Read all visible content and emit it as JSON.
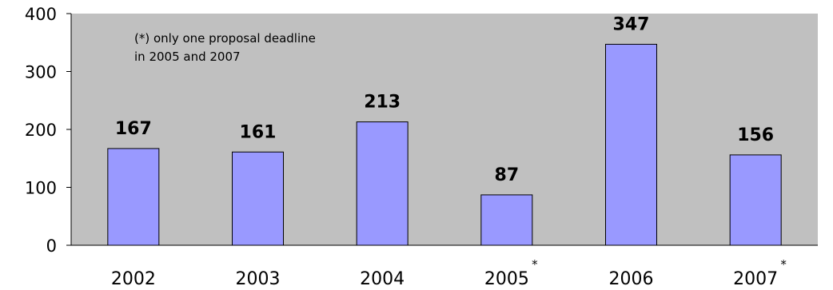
{
  "chart_data": {
    "type": "bar",
    "categories": [
      "2002",
      "2003",
      "2004",
      "2005",
      "2006",
      "2007"
    ],
    "category_markers": [
      "",
      "",
      "",
      "*",
      "",
      "*"
    ],
    "values": [
      167,
      161,
      213,
      87,
      347,
      156
    ],
    "data_labels": [
      "167",
      "161",
      "213",
      "87",
      "347",
      "156"
    ],
    "ylim": [
      0,
      400
    ],
    "yticks": [
      "0",
      "100",
      "200",
      "300",
      "400"
    ],
    "title": "",
    "xlabel": "",
    "ylabel": "",
    "annotation_lines": [
      "(*) only one proposal deadline",
      "in 2005 and 2007"
    ],
    "grid": false,
    "colors": {
      "bar_fill": "#9999ff",
      "bar_stroke": "#000000",
      "plot_background": "#c0c0c0",
      "axis": "#000000"
    }
  }
}
